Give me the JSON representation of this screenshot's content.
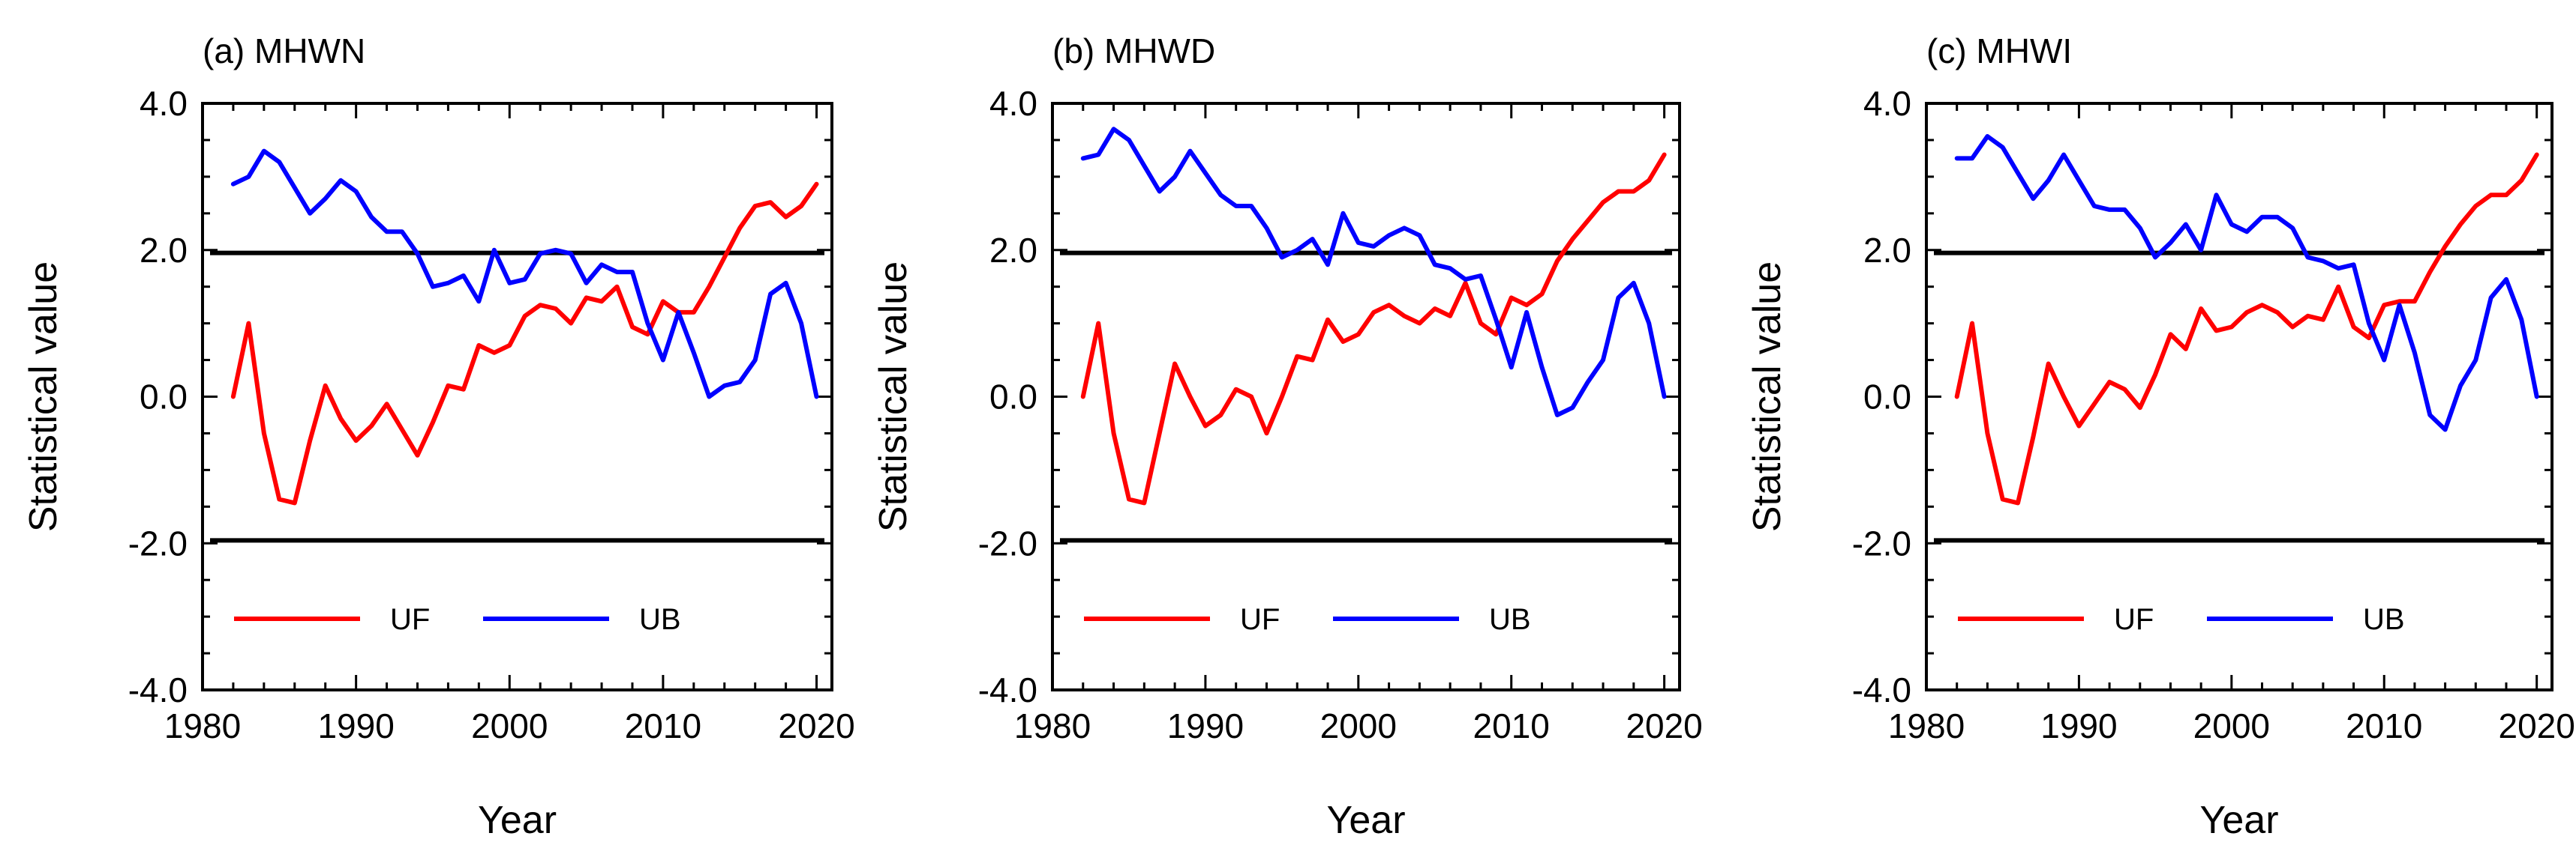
{
  "chart_data": [
    {
      "type": "line",
      "title": "(a) MHWN",
      "xlabel": "Year",
      "ylabel": "Statistical value",
      "xlim": [
        1980,
        2021
      ],
      "ylim": [
        -4.0,
        4.0
      ],
      "xticks": [
        1980,
        1990,
        2000,
        2010,
        2020
      ],
      "xtick_labels": [
        "1980",
        "1990",
        "2000",
        "2010",
        "2020"
      ],
      "yticks": [
        -4.0,
        -2.0,
        0.0,
        2.0,
        4.0
      ],
      "ytick_labels": [
        "-4.0",
        "-2.0",
        "0.0",
        "2.0",
        "4.0"
      ],
      "reference_lines": [
        1.96,
        -1.96
      ],
      "legend_position": "lower-left",
      "x": [
        1982,
        1983,
        1984,
        1985,
        1986,
        1987,
        1988,
        1989,
        1990,
        1991,
        1992,
        1993,
        1994,
        1995,
        1996,
        1997,
        1998,
        1999,
        2000,
        2001,
        2002,
        2003,
        2004,
        2005,
        2006,
        2007,
        2008,
        2009,
        2010,
        2011,
        2012,
        2013,
        2014,
        2015,
        2016,
        2017,
        2018,
        2019,
        2020
      ],
      "series": [
        {
          "name": "UF",
          "color": "#ff0000",
          "values": [
            0.0,
            1.0,
            -0.5,
            -1.4,
            -1.45,
            -0.6,
            0.15,
            -0.3,
            -0.6,
            -0.4,
            -0.1,
            -0.45,
            -0.8,
            -0.35,
            0.15,
            0.1,
            0.7,
            0.6,
            0.7,
            1.1,
            1.25,
            1.2,
            1.0,
            1.35,
            1.3,
            1.5,
            0.95,
            0.85,
            1.3,
            1.15,
            1.15,
            1.5,
            1.9,
            2.3,
            2.6,
            2.65,
            2.45,
            2.6,
            2.9
          ]
        },
        {
          "name": "UB",
          "color": "#0000ff",
          "values": [
            2.9,
            3.0,
            3.35,
            3.2,
            2.85,
            2.5,
            2.7,
            2.95,
            2.8,
            2.45,
            2.25,
            2.25,
            1.95,
            1.5,
            1.55,
            1.65,
            1.3,
            2.0,
            1.55,
            1.6,
            1.95,
            2.0,
            1.95,
            1.55,
            1.8,
            1.7,
            1.7,
            1.0,
            0.5,
            1.15,
            0.6,
            0.0,
            0.15,
            0.2,
            0.5,
            1.4,
            1.55,
            1.0,
            0.0
          ]
        }
      ]
    },
    {
      "type": "line",
      "title": "(b) MHWD",
      "xlabel": "Year",
      "ylabel": "Statistical value",
      "xlim": [
        1980,
        2021
      ],
      "ylim": [
        -4.0,
        4.0
      ],
      "xticks": [
        1980,
        1990,
        2000,
        2010,
        2020
      ],
      "xtick_labels": [
        "1980",
        "1990",
        "2000",
        "2010",
        "2020"
      ],
      "yticks": [
        -4.0,
        -2.0,
        0.0,
        2.0,
        4.0
      ],
      "ytick_labels": [
        "-4.0",
        "-2.0",
        "0.0",
        "2.0",
        "4.0"
      ],
      "reference_lines": [
        1.96,
        -1.96
      ],
      "legend_position": "lower-left",
      "x": [
        1982,
        1983,
        1984,
        1985,
        1986,
        1987,
        1988,
        1989,
        1990,
        1991,
        1992,
        1993,
        1994,
        1995,
        1996,
        1997,
        1998,
        1999,
        2000,
        2001,
        2002,
        2003,
        2004,
        2005,
        2006,
        2007,
        2008,
        2009,
        2010,
        2011,
        2012,
        2013,
        2014,
        2015,
        2016,
        2017,
        2018,
        2019,
        2020
      ],
      "series": [
        {
          "name": "UF",
          "color": "#ff0000",
          "values": [
            0.0,
            1.0,
            -0.5,
            -1.4,
            -1.45,
            -0.5,
            0.45,
            0.0,
            -0.4,
            -0.25,
            0.1,
            0.0,
            -0.5,
            0.0,
            0.55,
            0.5,
            1.05,
            0.75,
            0.85,
            1.15,
            1.25,
            1.1,
            1.0,
            1.2,
            1.1,
            1.55,
            1.0,
            0.85,
            1.35,
            1.25,
            1.4,
            1.85,
            2.15,
            2.4,
            2.65,
            2.8,
            2.8,
            2.95,
            3.3
          ]
        },
        {
          "name": "UB",
          "color": "#0000ff",
          "values": [
            3.25,
            3.3,
            3.65,
            3.5,
            3.15,
            2.8,
            3.0,
            3.35,
            3.05,
            2.75,
            2.6,
            2.6,
            2.3,
            1.9,
            2.0,
            2.15,
            1.8,
            2.5,
            2.1,
            2.05,
            2.2,
            2.3,
            2.2,
            1.8,
            1.75,
            1.6,
            1.65,
            1.05,
            0.4,
            1.15,
            0.4,
            -0.25,
            -0.15,
            0.2,
            0.5,
            1.35,
            1.55,
            1.0,
            0.0
          ]
        }
      ]
    },
    {
      "type": "line",
      "title": "(c) MHWI",
      "xlabel": "Year",
      "ylabel": "Statistical value",
      "xlim": [
        1980,
        2021
      ],
      "ylim": [
        -4.0,
        4.0
      ],
      "xticks": [
        1980,
        1990,
        2000,
        2010,
        2020
      ],
      "xtick_labels": [
        "1980",
        "1990",
        "2000",
        "2010",
        "2020"
      ],
      "yticks": [
        -4.0,
        -2.0,
        0.0,
        2.0,
        4.0
      ],
      "ytick_labels": [
        "-4.0",
        "-2.0",
        "0.0",
        "2.0",
        "4.0"
      ],
      "reference_lines": [
        1.96,
        -1.96
      ],
      "legend_position": "lower-left",
      "x": [
        1982,
        1983,
        1984,
        1985,
        1986,
        1987,
        1988,
        1989,
        1990,
        1991,
        1992,
        1993,
        1994,
        1995,
        1996,
        1997,
        1998,
        1999,
        2000,
        2001,
        2002,
        2003,
        2004,
        2005,
        2006,
        2007,
        2008,
        2009,
        2010,
        2011,
        2012,
        2013,
        2014,
        2015,
        2016,
        2017,
        2018,
        2019,
        2020
      ],
      "series": [
        {
          "name": "UF",
          "color": "#ff0000",
          "values": [
            0.0,
            1.0,
            -0.5,
            -1.4,
            -1.45,
            -0.55,
            0.45,
            0.0,
            -0.4,
            -0.1,
            0.2,
            0.1,
            -0.15,
            0.3,
            0.85,
            0.65,
            1.2,
            0.9,
            0.95,
            1.15,
            1.25,
            1.15,
            0.95,
            1.1,
            1.05,
            1.5,
            0.95,
            0.8,
            1.25,
            1.3,
            1.3,
            1.7,
            2.05,
            2.35,
            2.6,
            2.75,
            2.75,
            2.95,
            3.3
          ]
        },
        {
          "name": "UB",
          "color": "#0000ff",
          "values": [
            3.25,
            3.25,
            3.55,
            3.4,
            3.05,
            2.7,
            2.95,
            3.3,
            2.95,
            2.6,
            2.55,
            2.55,
            2.3,
            1.9,
            2.1,
            2.35,
            2.0,
            2.75,
            2.35,
            2.25,
            2.45,
            2.45,
            2.3,
            1.9,
            1.85,
            1.75,
            1.8,
            1.0,
            0.5,
            1.25,
            0.6,
            -0.25,
            -0.45,
            0.15,
            0.5,
            1.35,
            1.6,
            1.05,
            0.0
          ]
        }
      ]
    }
  ]
}
